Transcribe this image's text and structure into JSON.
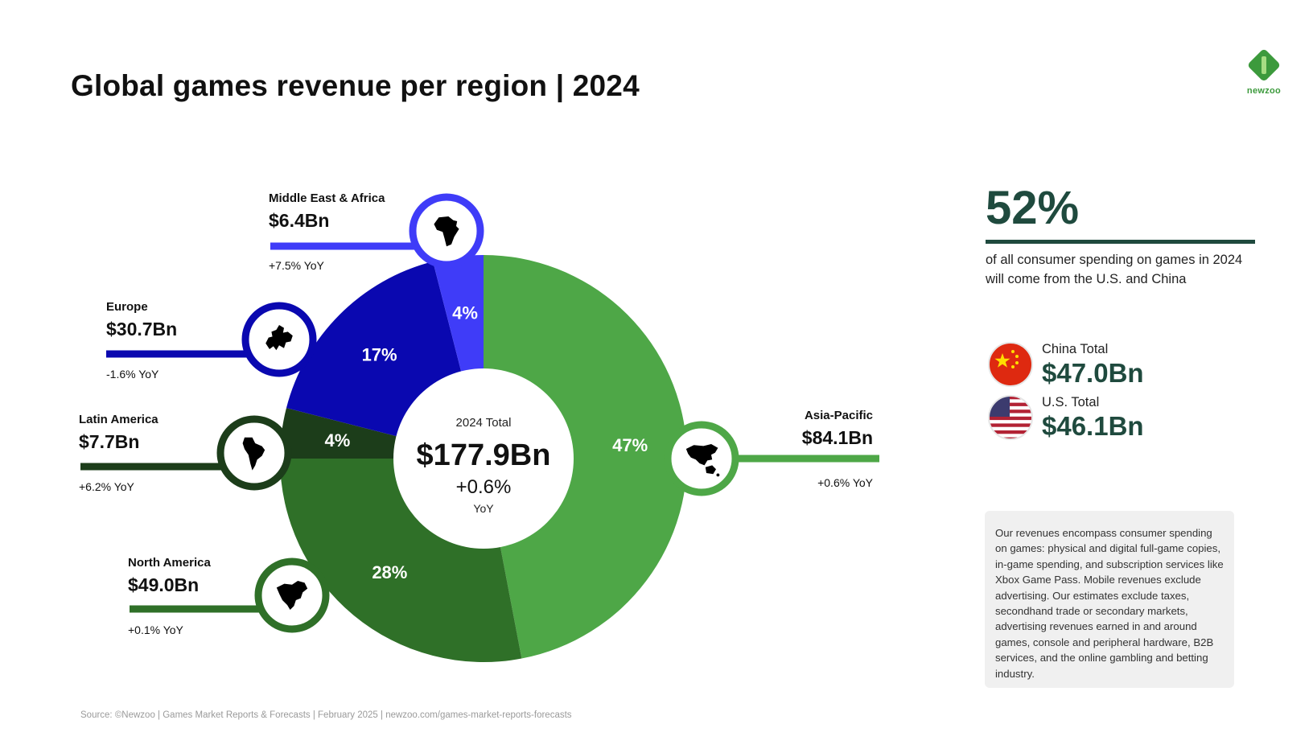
{
  "title": "Global games revenue per region | 2024",
  "logo": {
    "text": "newzoo",
    "color": "#3c9a3c"
  },
  "chart_data": {
    "type": "pie",
    "variant": "donut",
    "unit": "Bn USD",
    "center": {
      "label": "2024 Total",
      "total": "$177.9Bn",
      "change": "+0.6%",
      "change_label": "YoY"
    },
    "segments": [
      {
        "name": "Asia-Pacific",
        "value_label": "$84.1Bn",
        "value": 84.1,
        "percent": 47,
        "percent_label": "47%",
        "yoy": "+0.6% YoY",
        "color": "#4ea747",
        "icon": "asia-oceania-map-icon"
      },
      {
        "name": "North America",
        "value_label": "$49.0Bn",
        "value": 49.0,
        "percent": 28,
        "percent_label": "28%",
        "yoy": "+0.1% YoY",
        "color": "#2f7028",
        "icon": "north-america-map-icon"
      },
      {
        "name": "Latin America",
        "value_label": "$7.7Bn",
        "value": 7.7,
        "percent": 4,
        "percent_label": "4%",
        "yoy": "+6.2% YoY",
        "color": "#1c3d1a",
        "icon": "south-america-map-icon"
      },
      {
        "name": "Europe",
        "value_label": "$30.7Bn",
        "value": 30.7,
        "percent": 17,
        "percent_label": "17%",
        "yoy": "-1.6% YoY",
        "color": "#0a08b0",
        "icon": "europe-map-icon"
      },
      {
        "name": "Middle East & Africa",
        "value_label": "$6.4Bn",
        "value": 6.4,
        "percent": 4,
        "percent_label": "4%",
        "yoy": "+7.5% YoY",
        "color": "#3f3cf8",
        "icon": "africa-map-icon"
      }
    ]
  },
  "highlight": {
    "percent": "52%",
    "description": "of all consumer spending on games in 2024 will come from the U.S. and China",
    "countries": [
      {
        "label": "China Total",
        "value": "$47.0Bn",
        "icon": "china-flag-icon"
      },
      {
        "label": "U.S. Total",
        "value": "$46.1Bn",
        "icon": "us-flag-icon"
      }
    ]
  },
  "note": "Our revenues encompass consumer spending on games: physical and digital full-game copies, in-game spending, and subscription services like Xbox Game Pass. Mobile revenues exclude advertising. Our estimates exclude taxes, secondhand trade or secondary markets, advertising revenues earned in and around games, console and peripheral hardware, B2B services, and the online gambling and betting industry.",
  "source": "Source: ©Newzoo | Games Market Reports & Forecasts | February 2025 | newzoo.com/games-market-reports-forecasts",
  "colors": {
    "accent_dark_green": "#1f4a3e"
  }
}
